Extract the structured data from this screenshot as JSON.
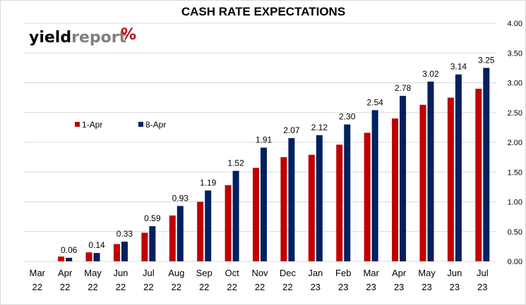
{
  "colors": {
    "series_1": "#C00000",
    "series_2": "#002060",
    "gridline": "#d9d9d9",
    "logo_yield": "#000000",
    "logo_report": "#7f7f7f",
    "logo_percent": "#C00000"
  },
  "logo": {
    "yield": "yield",
    "report": "report",
    "percent": "%"
  },
  "chart_data": {
    "type": "bar",
    "title": "CASH RATE EXPECTATIONS",
    "xlabel": "",
    "ylabel": "",
    "ylim": [
      0,
      4
    ],
    "y_ticks": [
      "0.00",
      "0.50",
      "1.00",
      "1.50",
      "2.00",
      "2.50",
      "3.00",
      "3.50",
      "4.00"
    ],
    "y_axis_side": "right",
    "grid": true,
    "legend_position": "middle-left",
    "categories": [
      [
        "Mar",
        "22"
      ],
      [
        "Apr",
        "22"
      ],
      [
        "May",
        "22"
      ],
      [
        "Jun",
        "22"
      ],
      [
        "Jul",
        "22"
      ],
      [
        "Aug",
        "22"
      ],
      [
        "Sep",
        "22"
      ],
      [
        "Oct",
        "22"
      ],
      [
        "Nov",
        "22"
      ],
      [
        "Dec",
        "22"
      ],
      [
        "Jan",
        "23"
      ],
      [
        "Feb",
        "23"
      ],
      [
        "Mar",
        "23"
      ],
      [
        "Apr",
        "23"
      ],
      [
        "May",
        "23"
      ],
      [
        "Jun",
        "23"
      ],
      [
        "Jul",
        "23"
      ]
    ],
    "series": [
      {
        "name": "1-Apr",
        "values": [
          0.0,
          0.08,
          0.15,
          0.29,
          0.48,
          0.77,
          1.0,
          1.28,
          1.57,
          1.75,
          1.79,
          1.96,
          2.16,
          2.4,
          2.63,
          2.75,
          2.9
        ]
      },
      {
        "name": "8-Apr",
        "values": [
          0.0,
          0.06,
          0.14,
          0.33,
          0.59,
          0.93,
          1.19,
          1.52,
          1.91,
          2.07,
          2.12,
          2.3,
          2.54,
          2.78,
          3.02,
          3.14,
          3.25
        ],
        "data_labels": [
          "",
          "0.06",
          "0.14",
          "0.33",
          "0.59",
          "0.93",
          "1.19",
          "1.52",
          "1.91",
          "2.07",
          "2.12",
          "2.30",
          "2.54",
          "2.78",
          "3.02",
          "3.14",
          "3.25"
        ]
      }
    ]
  }
}
